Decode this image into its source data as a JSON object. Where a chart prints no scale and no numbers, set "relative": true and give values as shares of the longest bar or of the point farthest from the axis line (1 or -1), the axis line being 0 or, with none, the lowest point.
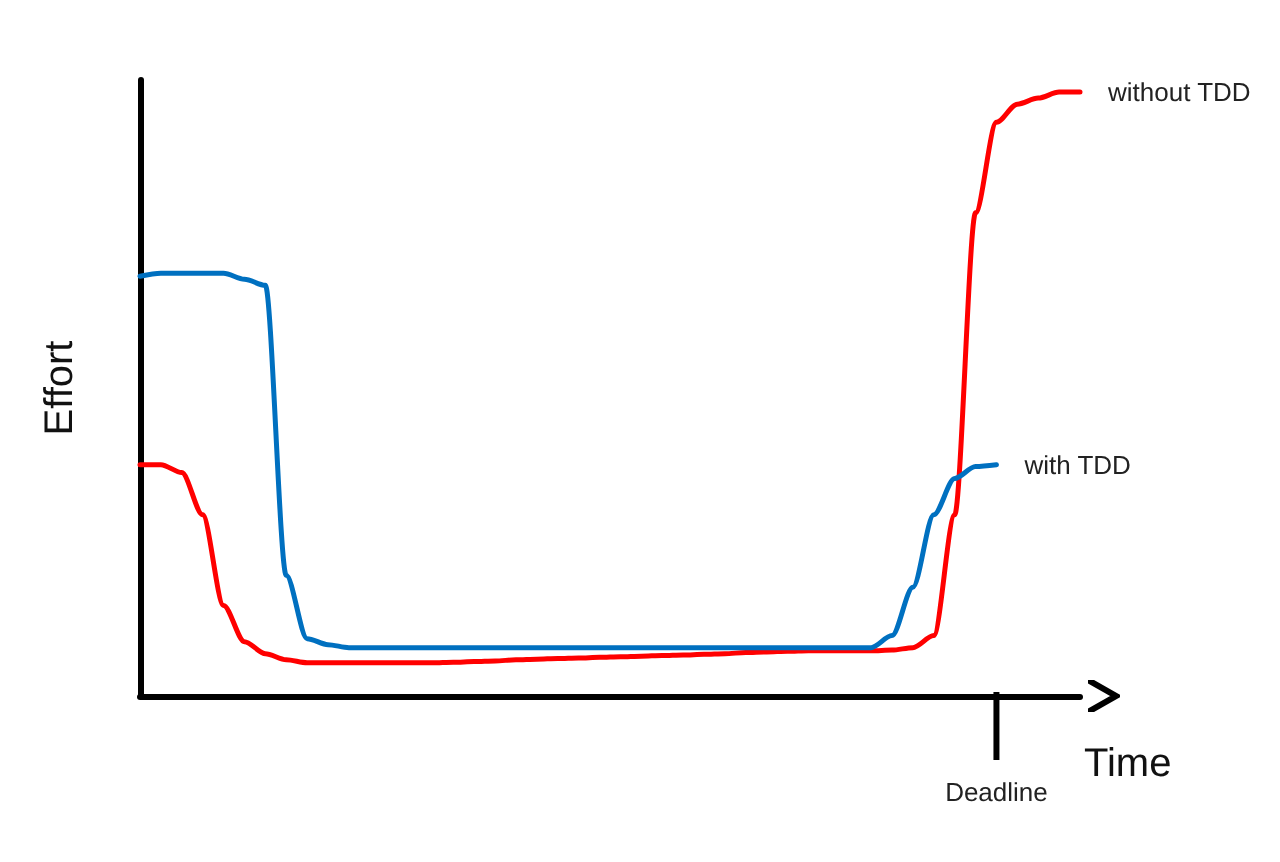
{
  "chart_data": {
    "type": "line",
    "relative": true,
    "xlabel": "Time",
    "ylabel": "Effort",
    "grid": false,
    "legend": false,
    "marker": "none",
    "line_style": "solid",
    "categories": [
      null,
      null,
      null,
      null,
      null,
      null,
      null,
      null,
      null,
      null,
      null,
      null,
      null,
      null,
      null,
      null,
      null,
      null,
      null,
      null,
      null,
      null,
      null,
      null,
      null,
      null,
      null,
      null,
      null,
      null,
      null,
      null,
      null,
      null,
      null,
      null,
      null,
      null,
      null,
      null,
      null,
      null,
      null,
      null,
      null,
      null
    ],
    "series": [
      {
        "name": "without TDD",
        "color": "#ff0000",
        "values": [
          0.383,
          0.383,
          0.37,
          0.3,
          0.15,
          0.09,
          0.07,
          0.06,
          0.055,
          0.055,
          0.055,
          0.055,
          0.055,
          0.055,
          0.055,
          0.056,
          0.057,
          0.058,
          0.06,
          0.061,
          0.062,
          0.063,
          0.064,
          0.065,
          0.066,
          0.067,
          0.068,
          0.069,
          0.07,
          0.072,
          0.073,
          0.074,
          0.075,
          0.075,
          0.075,
          0.075,
          0.076,
          0.08,
          0.1,
          0.3,
          0.8,
          0.95,
          0.98,
          0.99,
          1,
          1
        ]
      },
      {
        "name": "with TDD",
        "color": "#0070c0",
        "values": [
          0.695,
          0.7,
          0.7,
          0.7,
          0.7,
          0.69,
          0.68,
          0.2,
          0.095,
          0.085,
          0.08,
          0.08,
          0.08,
          0.08,
          0.08,
          0.08,
          0.08,
          0.08,
          0.08,
          0.08,
          0.08,
          0.08,
          0.08,
          0.08,
          0.08,
          0.08,
          0.08,
          0.08,
          0.08,
          0.08,
          0.08,
          0.08,
          0.08,
          0.08,
          0.08,
          0.08,
          0.1,
          0.18,
          0.3,
          0.36,
          0.38,
          0.383,
          null,
          null,
          null,
          null
        ]
      }
    ],
    "annotations": [
      {
        "text": "Deadline"
      }
    ]
  }
}
